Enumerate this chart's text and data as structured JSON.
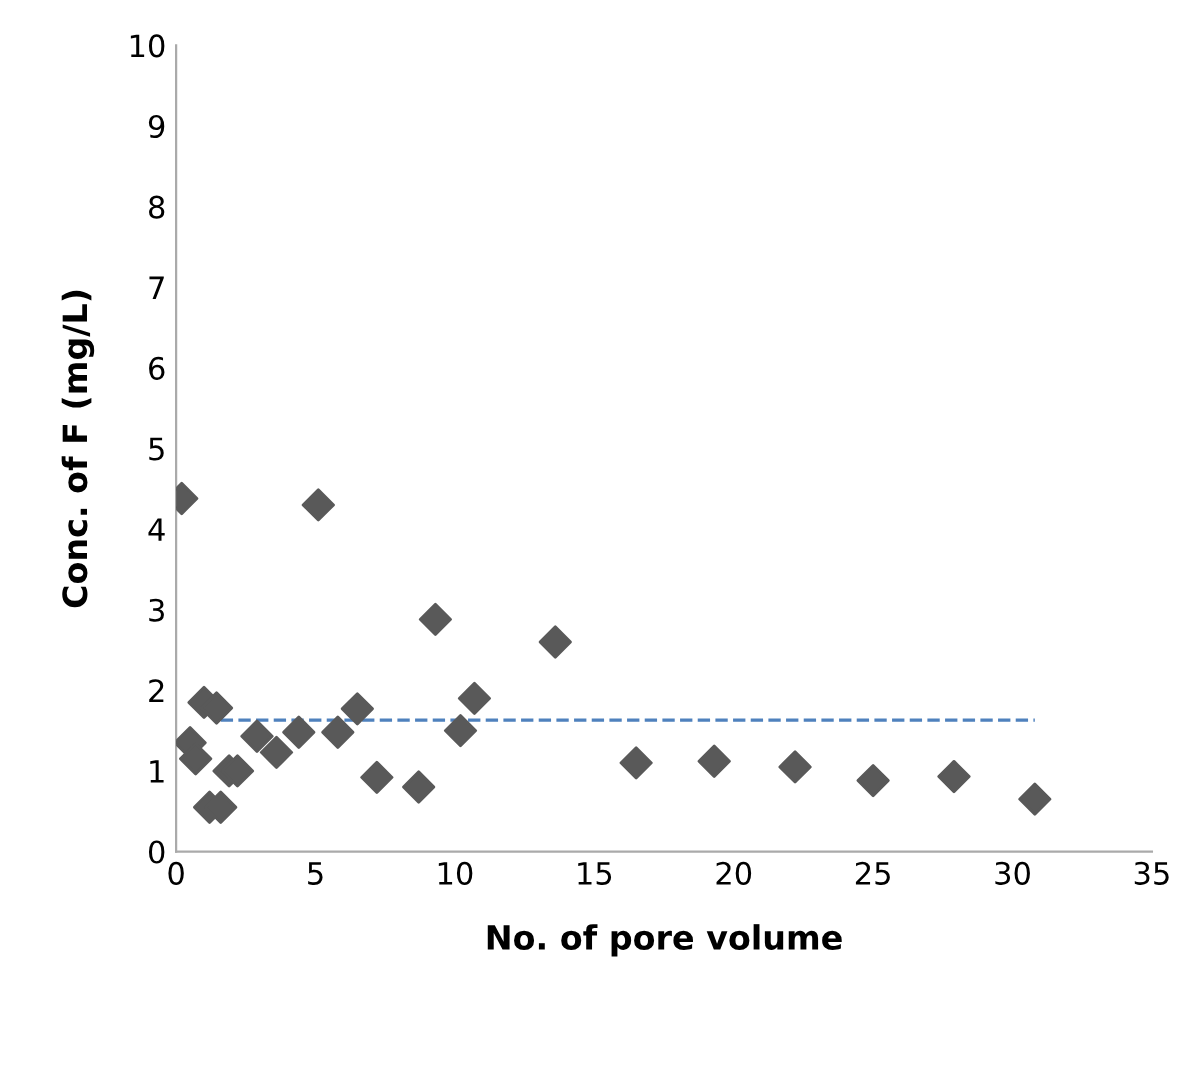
{
  "chart_data": {
    "type": "scatter",
    "xlabel": "No. of pore volume",
    "ylabel": "Conc. of F (mg/L)",
    "xlim": [
      0,
      35
    ],
    "ylim": [
      0,
      10
    ],
    "xticks": [
      0,
      5,
      10,
      15,
      20,
      25,
      30,
      35
    ],
    "yticks": [
      0,
      1,
      2,
      3,
      4,
      5,
      6,
      7,
      8,
      9,
      10
    ],
    "grid": false,
    "marker": "diamond",
    "series": [
      {
        "color": "#595959",
        "x": [
          0.2,
          0.5,
          0.7,
          1.0,
          1.2,
          1.45,
          1.6,
          1.9,
          2.2,
          2.9,
          3.6,
          4.4,
          5.1,
          5.8,
          6.5,
          7.2,
          8.7,
          9.3,
          10.2,
          10.7,
          13.6,
          16.5,
          19.3,
          22.2,
          25.0,
          27.9,
          30.8
        ],
        "values": [
          4.38,
          1.35,
          1.15,
          1.85,
          0.55,
          1.78,
          0.55,
          1.0,
          1.0,
          1.43,
          1.23,
          1.48,
          4.3,
          1.48,
          1.77,
          0.92,
          0.8,
          2.88,
          1.5,
          1.9,
          2.6,
          1.1,
          1.12,
          1.05,
          0.88,
          0.93,
          0.65
        ]
      },
      {
        "type": "line",
        "line_style": "dashed",
        "marker": "none",
        "color": "#4f81bd",
        "x": [
          1.6,
          30.8
        ],
        "values": [
          1.63,
          1.63
        ]
      }
    ]
  }
}
